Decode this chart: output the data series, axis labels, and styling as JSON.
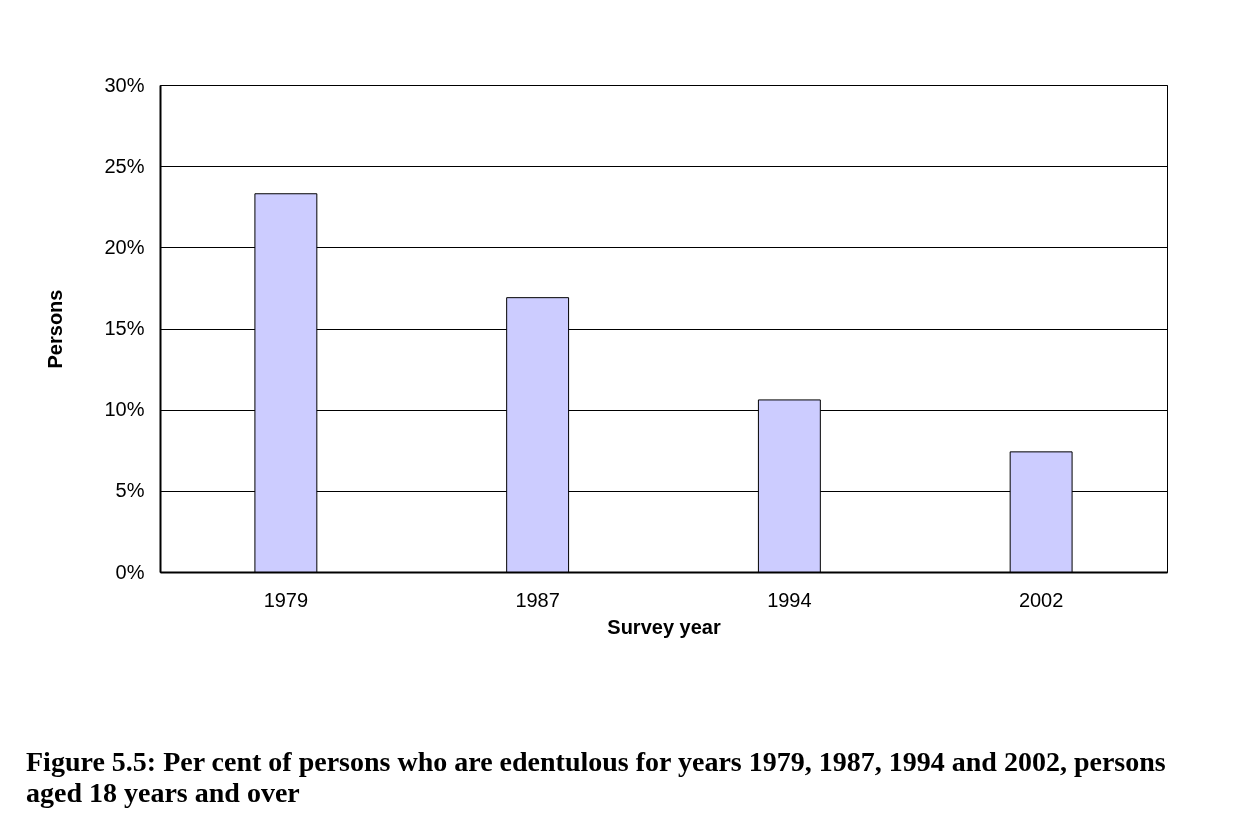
{
  "chart_data": {
    "type": "bar",
    "title": "Figure 5.5: Per cent of persons who are edentulous for years 1979, 1987, 1994 and 2002, persons aged 18 years and over",
    "xlabel": "Survey year",
    "ylabel": "Persons",
    "categories": [
      "1979",
      "1987",
      "1994",
      "2002"
    ],
    "values": [
      23.3,
      16.9,
      10.6,
      7.4
    ],
    "color": "#ccccff",
    "ylim": [
      0,
      30
    ],
    "yticks": [
      {
        "value": 0,
        "label": "0%"
      },
      {
        "value": 5,
        "label": "5%"
      },
      {
        "value": 10,
        "label": "10%"
      },
      {
        "value": 15,
        "label": "15%"
      },
      {
        "value": 20,
        "label": "20%"
      },
      {
        "value": 25,
        "label": "25%"
      },
      {
        "value": 30,
        "label": "30%"
      }
    ],
    "grid": "y"
  }
}
